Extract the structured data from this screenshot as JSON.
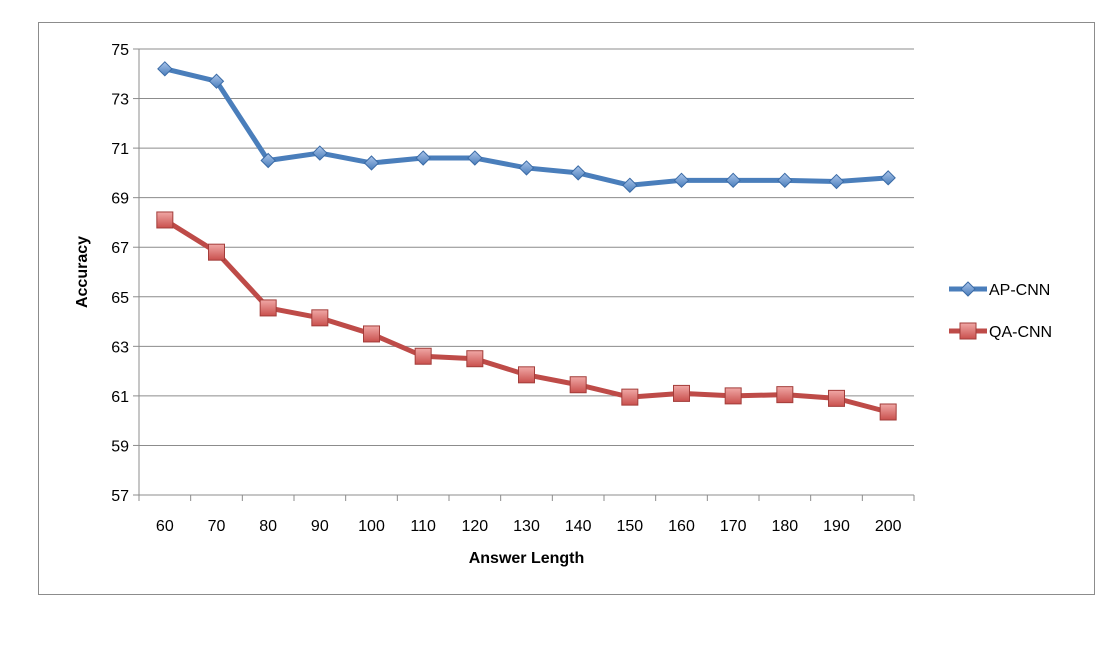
{
  "chart_data": {
    "type": "line",
    "title": "",
    "xlabel": "Answer Length",
    "ylabel": "Accuracy",
    "categories": [
      "60",
      "70",
      "80",
      "90",
      "100",
      "110",
      "120",
      "130",
      "140",
      "150",
      "160",
      "170",
      "180",
      "190",
      "200"
    ],
    "ylim": [
      57,
      75
    ],
    "yticks": [
      "57",
      "59",
      "61",
      "63",
      "65",
      "67",
      "69",
      "71",
      "73",
      "75"
    ],
    "grid": true,
    "legend_position": "right",
    "series": [
      {
        "name": "AP-CNN",
        "color": "#4a7ebb",
        "marker": "diamond",
        "values": [
          74.2,
          73.7,
          70.5,
          70.8,
          70.4,
          70.6,
          70.6,
          70.2,
          70.0,
          69.5,
          69.7,
          69.7,
          69.7,
          69.65,
          69.8
        ]
      },
      {
        "name": "QA-CNN",
        "color": "#be4b48",
        "marker": "square",
        "values": [
          68.1,
          66.8,
          64.55,
          64.15,
          63.5,
          62.6,
          62.5,
          61.85,
          61.45,
          60.95,
          61.1,
          61.0,
          61.05,
          60.9,
          60.35
        ]
      }
    ]
  }
}
